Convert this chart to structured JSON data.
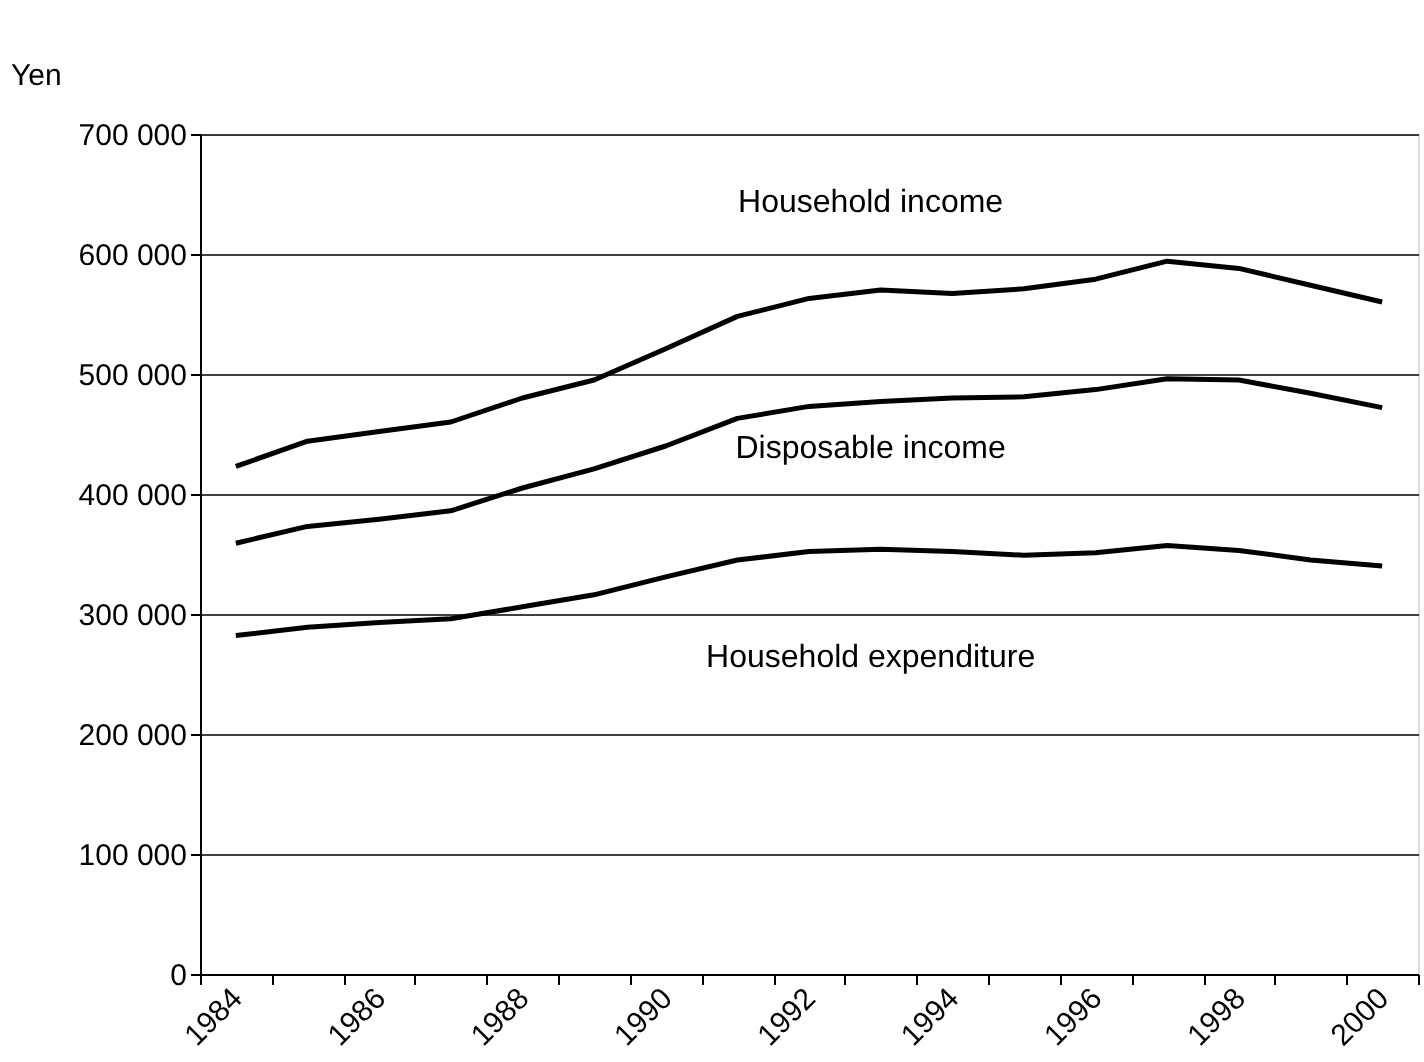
{
  "chart_data": {
    "type": "line",
    "ylabel": "Yen",
    "categories": [
      "1984",
      null,
      "1986",
      null,
      "1988",
      null,
      "1990",
      null,
      "1992",
      null,
      "1994",
      null,
      "1996",
      null,
      "1998",
      null,
      "2000"
    ],
    "series": [
      {
        "color": "#000000",
        "values": [
          423000,
          444000,
          452000,
          460000,
          480000,
          495000,
          521000,
          548000,
          563000,
          570000,
          567000,
          571000,
          579000,
          594000,
          588000,
          574000,
          560000
        ]
      },
      {
        "color": "#000000",
        "values": [
          359000,
          373000,
          379000,
          386000,
          405000,
          421000,
          440000,
          463000,
          473000,
          477000,
          480000,
          481000,
          487000,
          496000,
          495000,
          484000,
          472000
        ]
      },
      {
        "color": "#000000",
        "values": [
          282000,
          289000,
          293000,
          296000,
          306000,
          316000,
          331000,
          345000,
          352000,
          354000,
          352000,
          349000,
          351000,
          357000,
          353000,
          345000,
          340000
        ]
      }
    ],
    "annotations": [
      "Household income",
      "Disposable income",
      "Household expenditure"
    ],
    "ylim": [
      0,
      700000
    ],
    "yticks": [
      0,
      {
        "value": 100000,
        "label": "100 000"
      },
      {
        "value": 200000,
        "label": "200 000"
      },
      {
        "value": 300000,
        "label": "300 000"
      },
      {
        "value": 400000,
        "label": "400 000"
      },
      {
        "value": 500000,
        "label": "500 000"
      },
      {
        "value": 600000,
        "label": "600 000"
      },
      {
        "value": 700000,
        "label": "700 000"
      }
    ],
    "grid": "y",
    "marker": "none",
    "line_style": "solid"
  }
}
